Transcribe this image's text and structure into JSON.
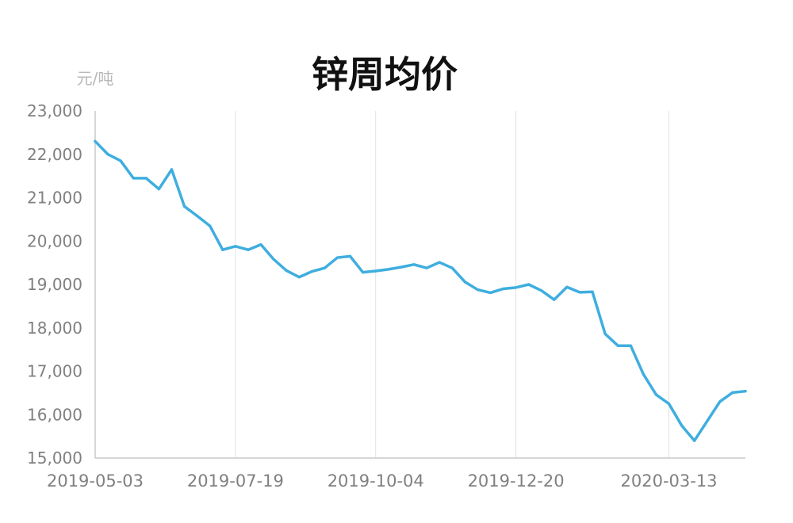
{
  "chart_data": {
    "type": "line",
    "title": "锌周均价",
    "ylabel": "元/吨",
    "xlabel": "",
    "ylim": [
      15000,
      23000
    ],
    "y_ticks": [
      "15,000",
      "16,000",
      "17,000",
      "18,000",
      "19,000",
      "20,000",
      "21,000",
      "22,000",
      "23,000"
    ],
    "x_ticks": [
      "2019-05-03",
      "2019-07-19",
      "2019-10-04",
      "2019-12-20",
      "2020-03-13"
    ],
    "grid": "vertical",
    "color": "#3FAEDF",
    "x": [
      "2019-05-03",
      "2019-05-10",
      "2019-05-17",
      "2019-05-24",
      "2019-05-31",
      "2019-06-07",
      "2019-06-14",
      "2019-06-21",
      "2019-06-28",
      "2019-07-05",
      "2019-07-12",
      "2019-07-19",
      "2019-07-26",
      "2019-08-02",
      "2019-08-09",
      "2019-08-16",
      "2019-08-23",
      "2019-08-30",
      "2019-09-06",
      "2019-09-13",
      "2019-09-20",
      "2019-09-27",
      "2019-10-04",
      "2019-10-11",
      "2019-10-18",
      "2019-10-25",
      "2019-11-01",
      "2019-11-08",
      "2019-11-15",
      "2019-11-22",
      "2019-11-29",
      "2019-12-06",
      "2019-12-13",
      "2019-12-20",
      "2019-12-27",
      "2020-01-03",
      "2020-01-10",
      "2020-01-17",
      "2020-01-24",
      "2020-01-31",
      "2020-02-07",
      "2020-02-14",
      "2020-02-21",
      "2020-02-28",
      "2020-03-06",
      "2020-03-13",
      "2020-03-20",
      "2020-03-27",
      "2020-04-03",
      "2020-04-10",
      "2020-04-17",
      "2020-04-24"
    ],
    "values": [
      22300,
      22000,
      21850,
      21450,
      21450,
      21200,
      21650,
      20800,
      20580,
      20350,
      19800,
      19880,
      19800,
      19920,
      19580,
      19320,
      19170,
      19300,
      19380,
      19620,
      19650,
      19280,
      19310,
      19350,
      19400,
      19460,
      19380,
      19510,
      19380,
      19060,
      18880,
      18810,
      18900,
      18930,
      19000,
      18860,
      18650,
      18940,
      18820,
      18830,
      17860,
      17590,
      17590,
      16930,
      16460,
      16250,
      15750,
      15400,
      15850,
      16300,
      16510,
      16540
    ]
  }
}
